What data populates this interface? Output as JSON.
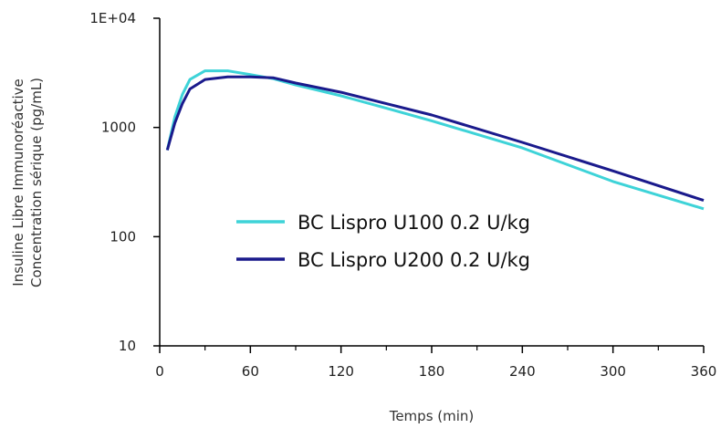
{
  "chart_data": {
    "type": "line",
    "title": "",
    "xlabel": "Temps (min)",
    "ylabel": [
      "Insuline Libre Immunoréactive",
      "Concentration sérique  (pg/mL)"
    ],
    "xlim": [
      0,
      360
    ],
    "ylim": [
      10,
      10000
    ],
    "y_scale": "log",
    "grid": false,
    "x_ticks": [
      0,
      60,
      120,
      180,
      240,
      300,
      360
    ],
    "x_tick_labels": [
      "0",
      "60",
      "120",
      "180",
      "240",
      "300",
      "360"
    ],
    "y_ticks": [
      10,
      100,
      1000,
      10000
    ],
    "y_tick_labels": [
      "10",
      "100",
      "1000",
      "1E+04"
    ],
    "legend_position": "center-left",
    "series": [
      {
        "name": "BC Lispro U100 0.2 U/kg",
        "color": "#3ed3d8",
        "x": [
          5,
          10,
          15,
          20,
          30,
          45,
          60,
          75,
          90,
          120,
          150,
          180,
          240,
          300,
          360
        ],
        "y": [
          620,
          1250,
          2000,
          2750,
          3300,
          3300,
          3050,
          2800,
          2450,
          1950,
          1500,
          1150,
          650,
          320,
          180
        ]
      },
      {
        "name": "BC Lispro U200 0.2 U/kg",
        "color": "#1a1a8c",
        "x": [
          5,
          10,
          15,
          20,
          30,
          45,
          60,
          75,
          90,
          120,
          150,
          180,
          240,
          300,
          360
        ],
        "y": [
          620,
          1100,
          1650,
          2250,
          2750,
          2900,
          2900,
          2850,
          2550,
          2100,
          1650,
          1300,
          730,
          400,
          215
        ]
      }
    ]
  }
}
